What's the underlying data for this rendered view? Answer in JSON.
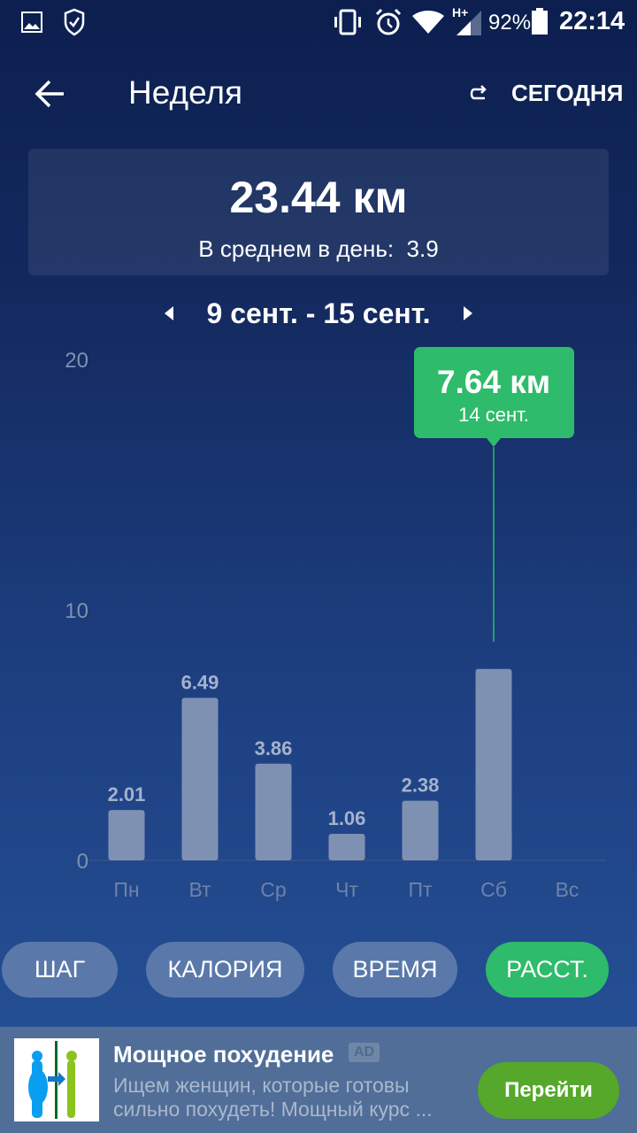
{
  "status_bar": {
    "battery": "92%",
    "time": "22:14",
    "network": "H+",
    "icons": [
      "image-icon",
      "shield-check-icon",
      "vibrate-icon",
      "alarm-icon",
      "wifi-icon",
      "signal-icon",
      "battery-icon"
    ]
  },
  "header": {
    "title": "Неделя",
    "today_label": "СЕГОДНЯ"
  },
  "summary": {
    "total": "23.44 км",
    "avg_label": "В среднем в день:",
    "avg_value": "3.9"
  },
  "range": {
    "label": "9 сент. - 15 сент."
  },
  "chart_data": {
    "type": "bar",
    "categories": [
      "Пн",
      "Вт",
      "Ср",
      "Чт",
      "Пт",
      "Сб",
      "Вс"
    ],
    "values": [
      2.01,
      6.49,
      3.86,
      1.06,
      2.38,
      7.64,
      0
    ],
    "data_labels": [
      "2.01",
      "6.49",
      "3.86",
      "1.06",
      "2.38",
      "",
      ""
    ],
    "yticks": [
      "0",
      "10",
      "20"
    ],
    "ylim": [
      0,
      20
    ],
    "grid": false,
    "tooltip": {
      "value": "7.64 км",
      "date": "14 сент.",
      "category": "Сб"
    },
    "colors": {
      "bar": "#7f91b3",
      "highlight": "#2ebb6b"
    }
  },
  "tabs": [
    {
      "label": "ШАГ",
      "active": false
    },
    {
      "label": "КАЛОРИЯ",
      "active": false
    },
    {
      "label": "ВРЕМЯ",
      "active": false
    },
    {
      "label": "РАССТ.",
      "active": true
    }
  ],
  "ad": {
    "title": "Мощное похудение",
    "badge": "AD",
    "text1": "Ищем женщин, которые готовы",
    "text2": "сильно похудеть! Мощный курс ...",
    "cta": "Перейти"
  }
}
